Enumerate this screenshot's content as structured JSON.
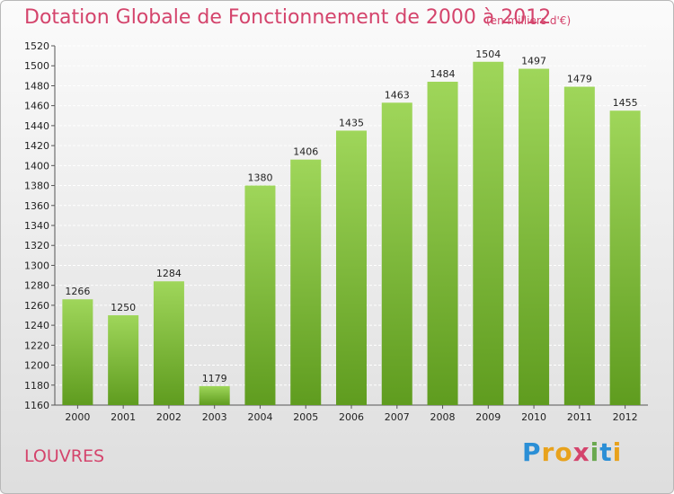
{
  "title": "Dotation Globale de Fonctionnement de 2000 à 2012",
  "unit": "(en milliers d'€)",
  "commune": "LOUVRES",
  "logo": {
    "text": "Proxiti",
    "letters": [
      {
        "ch": "P",
        "color": "#2b8fd6"
      },
      {
        "ch": "r",
        "color": "#e8a21c"
      },
      {
        "ch": "o",
        "color": "#e8a21c"
      },
      {
        "ch": "x",
        "color": "#d4446c"
      },
      {
        "ch": "i",
        "color": "#6aa84f"
      },
      {
        "ch": "t",
        "color": "#2b8fd6"
      },
      {
        "ch": "i",
        "color": "#e8a21c"
      }
    ]
  },
  "colors": {
    "accent": "#d4446c",
    "bar_light": "#9fd65a",
    "bar_dark": "#5f9c1f"
  },
  "chart_data": {
    "type": "bar",
    "title": "Dotation Globale de Fonctionnement de 2000 à 2012",
    "xlabel": "",
    "ylabel": "",
    "categories": [
      "2000",
      "2001",
      "2002",
      "2003",
      "2004",
      "2005",
      "2006",
      "2007",
      "2008",
      "2009",
      "2010",
      "2011",
      "2012"
    ],
    "values": [
      1266,
      1250,
      1284,
      1179,
      1380,
      1406,
      1435,
      1463,
      1484,
      1504,
      1497,
      1479,
      1455
    ],
    "ylim": [
      1160,
      1520
    ],
    "yticks": [
      1160,
      1180,
      1200,
      1220,
      1240,
      1260,
      1280,
      1300,
      1320,
      1340,
      1360,
      1380,
      1400,
      1420,
      1440,
      1460,
      1480,
      1500,
      1520
    ],
    "grid": true,
    "legend": "none"
  }
}
